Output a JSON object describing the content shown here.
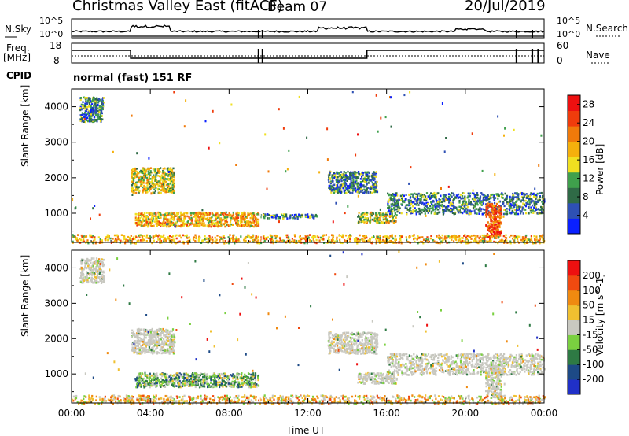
{
  "header": {
    "title": "Christmas Valley East (fitACF)",
    "beam": "Beam 07",
    "date": "20/Jul/2019"
  },
  "params": {
    "nsky_label": "N.Sky",
    "nsearch_label": "N.Search",
    "nsky_ticks": [
      "10^5",
      "10^0"
    ],
    "nsearch_ticks": [
      "10^5",
      "10^0"
    ],
    "freq_label": "Freq.",
    "freq_unit": "[MHz]",
    "freq_ticks": [
      "18",
      "8"
    ],
    "nave_label": "Nave",
    "nave_ticks": [
      "60",
      "0"
    ],
    "cpid_label": "CPID",
    "cpid_text": "normal (fast) 151 RF"
  },
  "colors": {
    "power_scale": [
      "#0a20ff",
      "#2e50b4",
      "#2f6a46",
      "#3fa04c",
      "#f0e020",
      "#f5b00c",
      "#f07a0a",
      "#f03c0c",
      "#ee1010"
    ],
    "velocity_scale": [
      "#2030c8",
      "#1d4a86",
      "#2e7a44",
      "#7ad040",
      "#c8c8c0",
      "#f0c030",
      "#f08a10",
      "#f04a10",
      "#ee1010"
    ],
    "gray": "#c8c8c0"
  },
  "chart_data": [
    {
      "type": "heatmap",
      "name": "power",
      "xlabel": "Time UT",
      "ylabel": "Slant Range [km]",
      "x_ticks": [
        "00:00",
        "04:00",
        "08:00",
        "12:00",
        "16:00",
        "20:00",
        "00:00"
      ],
      "xlim_hours": [
        0,
        24
      ],
      "y_ticks": [
        1000,
        2000,
        3000,
        4000
      ],
      "ylim_km": [
        180,
        4500
      ],
      "colorbar_label": "Power [dB]",
      "colorbar_ticks": [
        4,
        8,
        12,
        16,
        20,
        24,
        28
      ],
      "colorbar_range": [
        0,
        30
      ],
      "echo_regions": [
        {
          "t": [
            0.4,
            1.6
          ],
          "r": [
            3600,
            4300
          ],
          "level": 2
        },
        {
          "t": [
            3.0,
            5.2
          ],
          "r": [
            1600,
            2300
          ],
          "level": 4
        },
        {
          "t": [
            3.2,
            9.5
          ],
          "r": [
            650,
            1050
          ],
          "level": 5
        },
        {
          "t": [
            9.5,
            12.5
          ],
          "r": [
            880,
            1000
          ],
          "level": 2
        },
        {
          "t": [
            13.0,
            15.5
          ],
          "r": [
            1600,
            2200
          ],
          "level": 2
        },
        {
          "t": [
            14.5,
            16.5
          ],
          "r": [
            750,
            1050
          ],
          "level": 4
        },
        {
          "t": [
            16.0,
            24.0
          ],
          "r": [
            1000,
            1600
          ],
          "level": 2
        },
        {
          "t": [
            21.0,
            21.8
          ],
          "r": [
            350,
            1300
          ],
          "level": 7
        },
        {
          "t": [
            0.0,
            24.0
          ],
          "r": [
            180,
            420
          ],
          "level": 5
        }
      ]
    },
    {
      "type": "heatmap",
      "name": "velocity",
      "xlabel": "Time UT",
      "ylabel": "Slant Range [km]",
      "x_ticks": [
        "00:00",
        "04:00",
        "08:00",
        "12:00",
        "16:00",
        "20:00",
        "00:00"
      ],
      "xlim_hours": [
        0,
        24
      ],
      "y_ticks": [
        1000,
        2000,
        3000,
        4000
      ],
      "ylim_km": [
        180,
        4500
      ],
      "colorbar_label": "Velocity [m s^-1]",
      "colorbar_ticks": [
        "200",
        "100",
        "50",
        "15",
        "-15",
        "-50",
        "-100",
        "-200"
      ],
      "colorbar_range": [
        -250,
        250
      ],
      "echo_regions": [
        {
          "t": [
            0.4,
            1.6
          ],
          "r": [
            3600,
            4300
          ],
          "level": 4
        },
        {
          "t": [
            3.0,
            5.2
          ],
          "r": [
            1600,
            2300
          ],
          "level": 4
        },
        {
          "t": [
            3.2,
            9.5
          ],
          "r": [
            650,
            1050
          ],
          "level": 3
        },
        {
          "t": [
            13.0,
            15.5
          ],
          "r": [
            1600,
            2200
          ],
          "level": 4
        },
        {
          "t": [
            14.5,
            16.5
          ],
          "r": [
            750,
            1050
          ],
          "level": 4
        },
        {
          "t": [
            16.0,
            24.0
          ],
          "r": [
            1000,
            1600
          ],
          "level": 4
        },
        {
          "t": [
            21.0,
            21.8
          ],
          "r": [
            350,
            1300
          ],
          "level": 4
        },
        {
          "t": [
            0.0,
            24.0
          ],
          "r": [
            180,
            420
          ],
          "level": 5
        }
      ]
    }
  ]
}
